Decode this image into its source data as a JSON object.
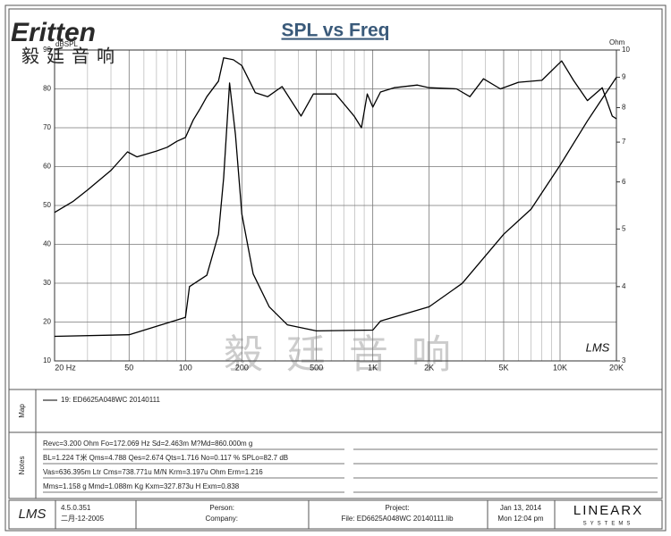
{
  "logo": {
    "brand": "Eritten",
    "chinese": "毅廷音响"
  },
  "watermark": "毅 廷 音 响",
  "plot_logo": "LMS",
  "chart_data": {
    "type": "line",
    "title": "SPL vs Freq",
    "ylabel": "dBSPL",
    "y2label": "Ohm",
    "xlim": [
      20,
      20000
    ],
    "xlog": true,
    "xticks": [
      {
        "value": 20,
        "label": "20 Hz"
      },
      50,
      100,
      200,
      500,
      {
        "value": 1000,
        "label": "1K"
      },
      {
        "value": 2000,
        "label": "2K"
      },
      {
        "value": 5000,
        "label": "5K"
      },
      {
        "value": 10000,
        "label": "10K"
      },
      {
        "value": 20000,
        "label": "20K"
      }
    ],
    "xminor": [
      30,
      40,
      60,
      70,
      80,
      90,
      300,
      400,
      600,
      700,
      800,
      900,
      3000,
      4000,
      6000,
      7000,
      8000,
      9000
    ],
    "ylim": [
      10,
      90
    ],
    "yticks": [
      10,
      20,
      30,
      40,
      50,
      60,
      70,
      80,
      90
    ],
    "y2lim": [
      3,
      10
    ],
    "y2log": true,
    "y2ticks": [
      3,
      4,
      5,
      6,
      7,
      8,
      9,
      10
    ],
    "grid": true,
    "series": [
      {
        "name": "SPL",
        "color": "#000000",
        "x": [
          20,
          25,
          30,
          40,
          49,
          55,
          70,
          80,
          90,
          100,
          110,
          120,
          130,
          150,
          160,
          180,
          200,
          236,
          275,
          328,
          414,
          482,
          634,
          795,
          870,
          935,
          1000,
          1100,
          1300,
          1730,
          2000,
          2800,
          3300,
          3900,
          4800,
          6000,
          8000,
          10200,
          11800,
          14000,
          16800,
          19000,
          20000
        ],
        "values": [
          48.2,
          51,
          54,
          59,
          63.8,
          62.5,
          64,
          65,
          66.5,
          67.5,
          72,
          75,
          78,
          82,
          88,
          87.5,
          86,
          79,
          78,
          80.6,
          73,
          78.7,
          78.7,
          73,
          70,
          78.7,
          75.3,
          79.2,
          80.3,
          81,
          80.3,
          80,
          78,
          82.6,
          80,
          81.7,
          82.2,
          87.2,
          82.2,
          77,
          80.3,
          73,
          72.3
        ]
      },
      {
        "name": "Impedance",
        "color": "#000000",
        "axis": "y2",
        "x": [
          20,
          50,
          100,
          105,
          130,
          150,
          160,
          172,
          185,
          200,
          230,
          280,
          350,
          500,
          1000,
          1100,
          2000,
          3000,
          5000,
          7000,
          10000,
          14000,
          20000
        ],
        "values": [
          3.3,
          3.32,
          3.55,
          4.0,
          4.18,
          4.9,
          6.1,
          8.8,
          7.2,
          5.3,
          4.2,
          3.7,
          3.45,
          3.37,
          3.38,
          3.5,
          3.7,
          4.05,
          4.9,
          5.4,
          6.4,
          7.6,
          9.0
        ]
      }
    ]
  },
  "map_panel": {
    "label": "Map",
    "entry": "19: ED6625A048WC   20140111"
  },
  "notes": {
    "label": "Notes",
    "lines": [
      "Revc=3.200 Ohm  Fo=172.069 Hz  Sd=2.463m M?Md=860.000m g",
      "BL=1.224 T米  Qms=4.788  Qes=2.674  Qts=1.716  No=0.117 %  SPLo=82.7 dB",
      "Vas=636.395m Ltr  Cms=738.771u M/N  Krm=3.197u Ohm  Erm=1.216",
      "Mms=1.158 g  Mmd=1.088m Kg  Kxm=327.873u H  Exm=0.838"
    ]
  },
  "footer": {
    "logo": "LMS",
    "version": "4.5.0.351",
    "version_date": "二月-12-2005",
    "person": "Person:",
    "company": "Company:",
    "project": "Project:",
    "file": "File: ED6625A048WC  20140111.lib",
    "date": "Jan 13, 2014",
    "time": "Mon 12:04 pm",
    "brand": "LINEARX",
    "brand_sub": "SYSTEMS"
  }
}
